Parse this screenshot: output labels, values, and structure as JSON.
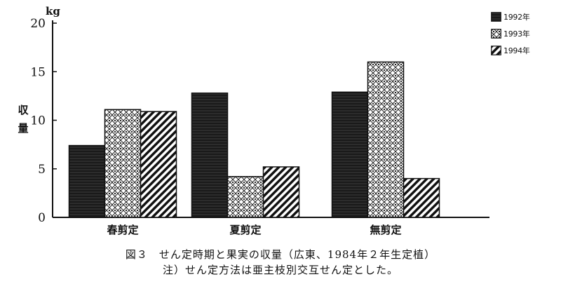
{
  "chart_data": {
    "type": "bar",
    "unit": "kg",
    "ylabel": "収量",
    "categories": [
      "春剪定",
      "夏剪定",
      "無剪定"
    ],
    "series": [
      {
        "name": "1992年",
        "values": [
          7.4,
          12.8,
          12.9
        ],
        "pattern": "solid-dark"
      },
      {
        "name": "1993年",
        "values": [
          11.1,
          4.2,
          16.0
        ],
        "pattern": "diamond-check"
      },
      {
        "name": "1994年",
        "values": [
          10.9,
          5.2,
          4.0
        ],
        "pattern": "diagonal-hatch"
      }
    ],
    "ylim": [
      0,
      20
    ],
    "yticks": [
      "0",
      "5",
      "10",
      "15",
      "20"
    ],
    "legend_position": "top-right",
    "grid": false
  },
  "caption": {
    "line1": "図３　せん定時期と果実の収量（広東、1984年２年生定植）",
    "line2": "注）せん定方法は亜主枝別交互せん定とした。"
  },
  "colors": {
    "ink": "#111111",
    "background": "#ffffff"
  }
}
